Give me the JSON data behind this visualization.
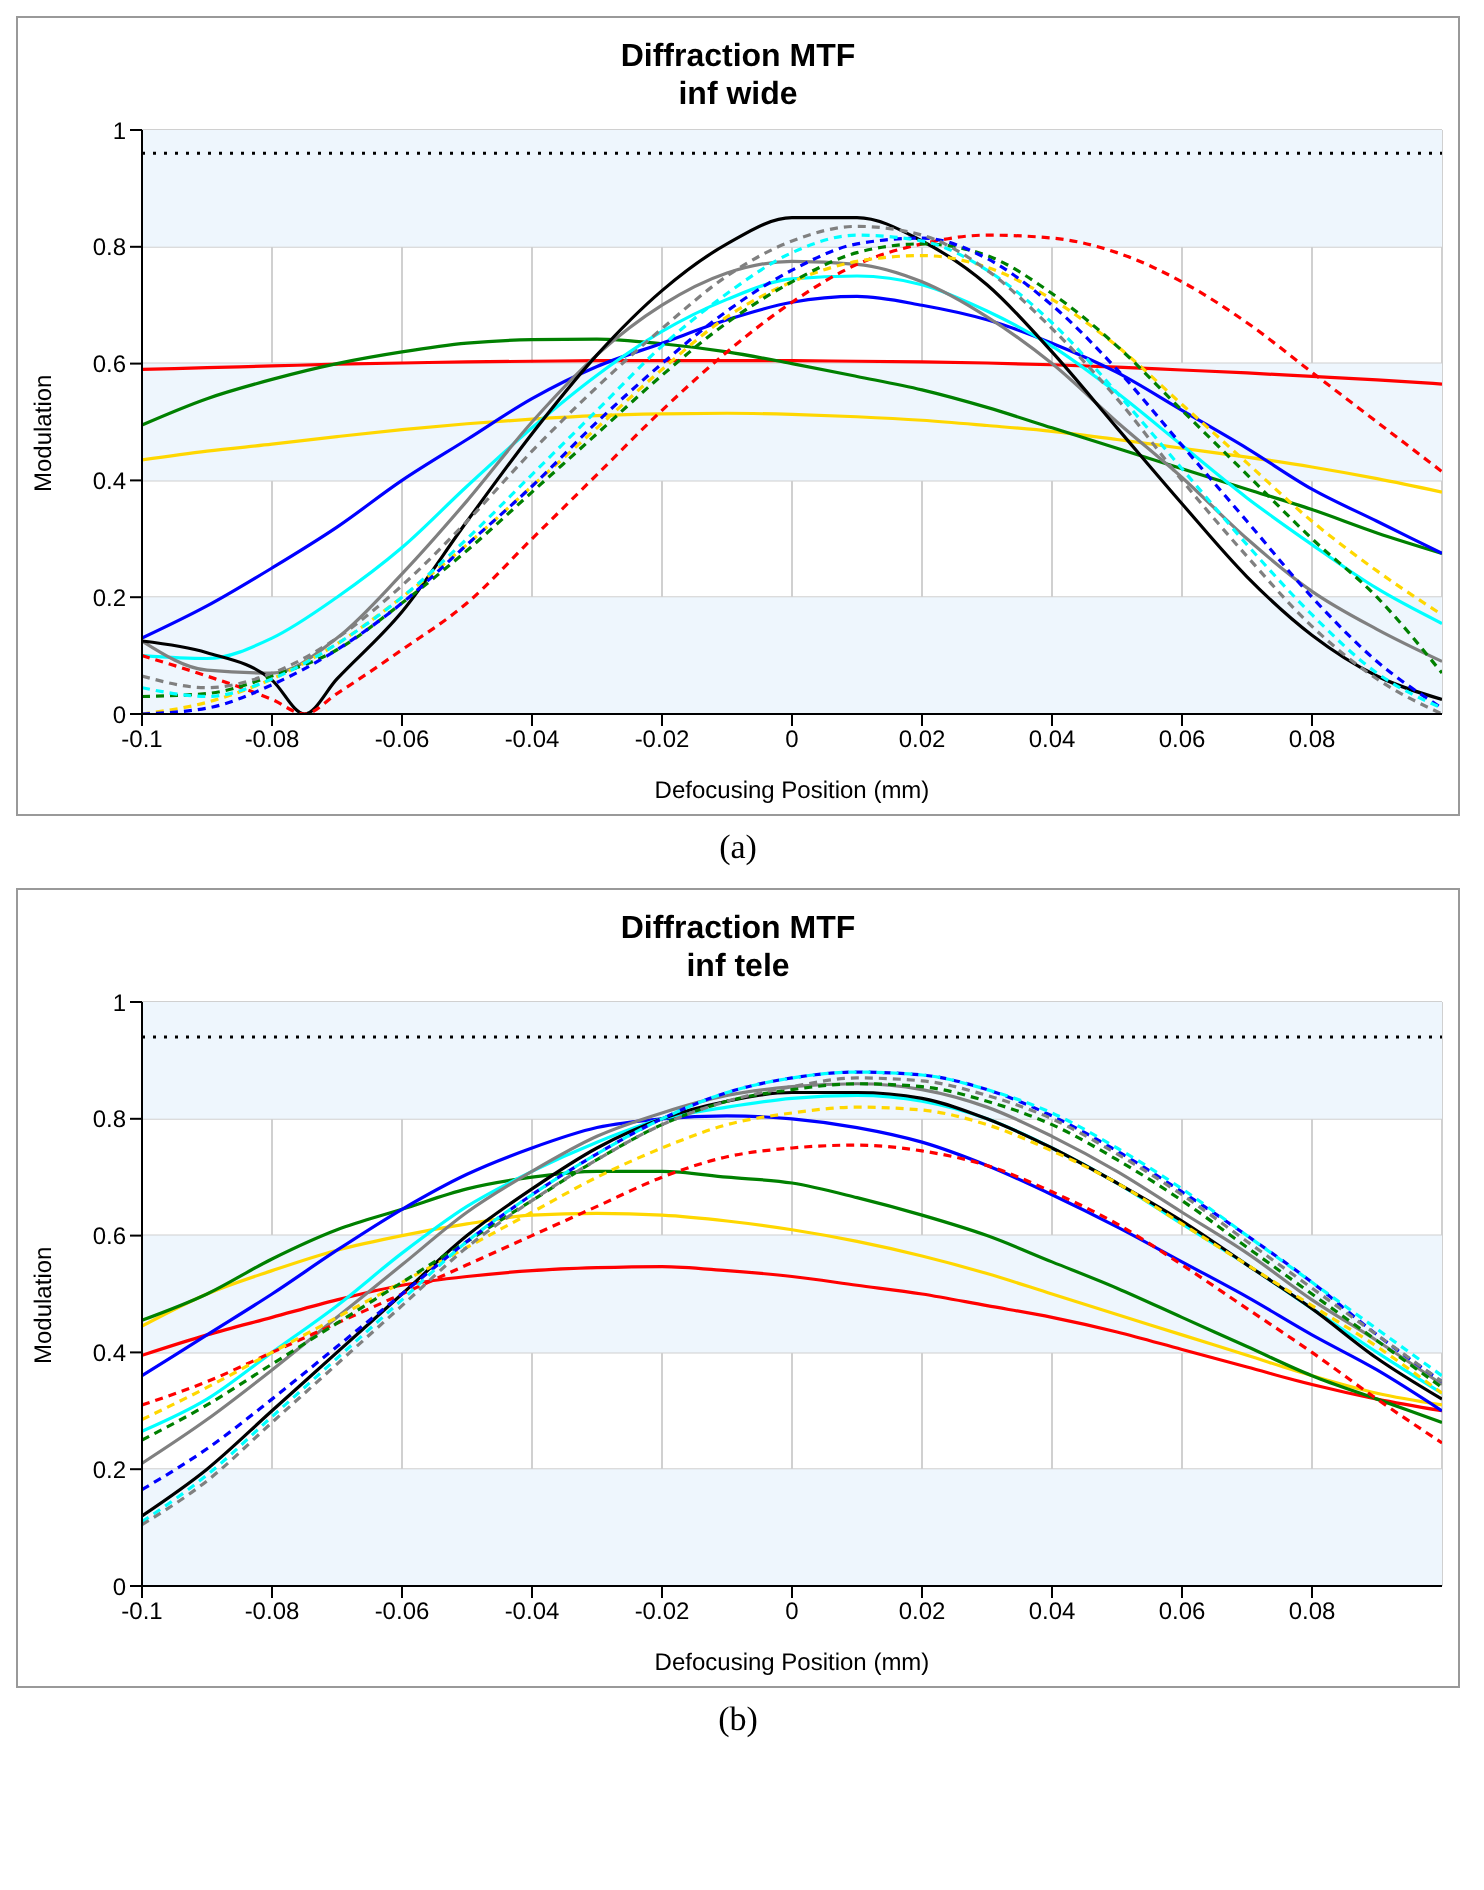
{
  "chart_data": [
    {
      "type": "line",
      "title": "Diffraction MTF",
      "subtitle": "inf wide",
      "xlabel": "Defocusing Position (mm)",
      "ylabel": "Modulation",
      "annotations": [
        "(a)"
      ],
      "x": [
        -0.1,
        -0.09,
        -0.08,
        -0.07,
        -0.06,
        -0.05,
        -0.04,
        -0.03,
        -0.02,
        -0.01,
        0,
        0.01,
        0.02,
        0.03,
        0.04,
        0.05,
        0.06,
        0.07,
        0.08,
        0.09,
        0.1
      ],
      "xlim": [
        -0.1,
        0.1
      ],
      "xticks": [
        -0.1,
        -0.08,
        -0.06,
        -0.04,
        -0.02,
        0,
        0.02,
        0.04,
        0.06,
        0.08
      ],
      "ylim": [
        0,
        1
      ],
      "yticks": [
        0,
        0.2,
        0.4,
        0.6,
        0.8,
        1
      ],
      "grid": true,
      "bands": [
        {
          "axis": "y",
          "from": 0,
          "to": 0.2,
          "color": "#eef6fd"
        },
        {
          "axis": "y",
          "from": 0.4,
          "to": 0.6,
          "color": "#eef6fd"
        },
        {
          "axis": "y",
          "from": 0.8,
          "to": 1,
          "color": "#eef6fd"
        }
      ],
      "ref_lines": [
        {
          "axis": "y",
          "value": 0.96,
          "color": "#000000",
          "line_style": "dotted"
        }
      ],
      "series": [
        {
          "color": "#ff0000",
          "line_style": "solid",
          "values": [
            0.59,
            0.593,
            0.596,
            0.599,
            0.601,
            0.603,
            0.604,
            0.605,
            0.605,
            0.605,
            0.605,
            0.604,
            0.603,
            0.601,
            0.598,
            0.594,
            0.589,
            0.584,
            0.578,
            0.572,
            0.565
          ]
        },
        {
          "color": "#ffd700",
          "line_style": "solid",
          "values": [
            0.435,
            0.45,
            0.462,
            0.475,
            0.487,
            0.497,
            0.505,
            0.511,
            0.514,
            0.515,
            0.513,
            0.509,
            0.503,
            0.494,
            0.484,
            0.47,
            0.455,
            0.44,
            0.423,
            0.403,
            0.38
          ]
        },
        {
          "color": "#008000",
          "line_style": "solid",
          "values": [
            0.495,
            0.54,
            0.573,
            0.6,
            0.62,
            0.635,
            0.641,
            0.642,
            0.634,
            0.62,
            0.6,
            0.578,
            0.555,
            0.525,
            0.49,
            0.455,
            0.42,
            0.385,
            0.35,
            0.31,
            0.275
          ]
        },
        {
          "color": "#0000ff",
          "line_style": "solid",
          "values": [
            0.13,
            0.185,
            0.25,
            0.32,
            0.4,
            0.47,
            0.54,
            0.595,
            0.635,
            0.675,
            0.705,
            0.715,
            0.7,
            0.675,
            0.635,
            0.585,
            0.52,
            0.455,
            0.385,
            0.33,
            0.275
          ]
        },
        {
          "color": "#00ffff",
          "line_style": "solid",
          "values": [
            0.1,
            0.095,
            0.13,
            0.2,
            0.285,
            0.39,
            0.49,
            0.58,
            0.655,
            0.71,
            0.745,
            0.75,
            0.735,
            0.69,
            0.63,
            0.55,
            0.46,
            0.37,
            0.29,
            0.215,
            0.155
          ]
        },
        {
          "color": "#808080",
          "line_style": "solid",
          "values": [
            0.125,
            0.075,
            0.07,
            0.13,
            0.24,
            0.365,
            0.5,
            0.615,
            0.7,
            0.755,
            0.775,
            0.77,
            0.74,
            0.68,
            0.6,
            0.5,
            0.405,
            0.3,
            0.21,
            0.145,
            0.09
          ]
        },
        {
          "color": "#000000",
          "line_style": "solid",
          "x": [
            -0.1,
            -0.09,
            -0.08,
            -0.075,
            -0.07,
            -0.06,
            -0.05,
            -0.04,
            -0.03,
            -0.02,
            -0.01,
            0,
            0.01,
            0.02,
            0.03,
            0.04,
            0.05,
            0.06,
            0.07,
            0.08,
            0.09,
            0.1
          ],
          "values": [
            0.125,
            0.105,
            0.058,
            0,
            0.06,
            0.175,
            0.33,
            0.48,
            0.615,
            0.725,
            0.805,
            0.85,
            0.85,
            0.81,
            0.735,
            0.62,
            0.49,
            0.36,
            0.235,
            0.135,
            0.065,
            0.025
          ]
        },
        {
          "color": "#ff0000",
          "line_style": "dashed",
          "x": [
            -0.1,
            -0.09,
            -0.08,
            -0.075,
            -0.07,
            -0.06,
            -0.05,
            -0.04,
            -0.03,
            -0.02,
            -0.01,
            0,
            0.01,
            0.02,
            0.03,
            0.04,
            0.05,
            0.06,
            0.07,
            0.08,
            0.09,
            0.1
          ],
          "values": [
            0.1,
            0.065,
            0.025,
            0,
            0.035,
            0.11,
            0.19,
            0.3,
            0.41,
            0.52,
            0.62,
            0.705,
            0.77,
            0.805,
            0.82,
            0.815,
            0.79,
            0.74,
            0.67,
            0.585,
            0.5,
            0.415
          ]
        },
        {
          "color": "#ffd700",
          "line_style": "dashed",
          "values": [
            0,
            0.02,
            0.06,
            0.12,
            0.2,
            0.29,
            0.39,
            0.49,
            0.59,
            0.68,
            0.74,
            0.775,
            0.785,
            0.765,
            0.71,
            0.63,
            0.53,
            0.43,
            0.33,
            0.245,
            0.17
          ]
        },
        {
          "color": "#008000",
          "line_style": "dashed",
          "values": [
            0.03,
            0.035,
            0.065,
            0.11,
            0.19,
            0.28,
            0.38,
            0.48,
            0.58,
            0.67,
            0.74,
            0.79,
            0.805,
            0.785,
            0.72,
            0.63,
            0.52,
            0.41,
            0.3,
            0.2,
            0.07
          ]
        },
        {
          "color": "#0000ff",
          "line_style": "dashed",
          "values": [
            0,
            0.01,
            0.05,
            0.11,
            0.19,
            0.29,
            0.39,
            0.5,
            0.6,
            0.69,
            0.76,
            0.805,
            0.815,
            0.78,
            0.7,
            0.59,
            0.46,
            0.33,
            0.2,
            0.09,
            0.01
          ]
        },
        {
          "color": "#00ffff",
          "line_style": "dashed",
          "values": [
            0.045,
            0.03,
            0.06,
            0.12,
            0.2,
            0.3,
            0.41,
            0.52,
            0.63,
            0.72,
            0.79,
            0.82,
            0.81,
            0.76,
            0.67,
            0.55,
            0.42,
            0.29,
            0.17,
            0.07,
            0.01
          ]
        },
        {
          "color": "#808080",
          "line_style": "dashed",
          "values": [
            0.065,
            0.045,
            0.07,
            0.13,
            0.22,
            0.33,
            0.45,
            0.56,
            0.66,
            0.75,
            0.81,
            0.835,
            0.82,
            0.76,
            0.66,
            0.54,
            0.4,
            0.27,
            0.15,
            0.06,
            0
          ]
        }
      ]
    },
    {
      "type": "line",
      "title": "Diffraction MTF",
      "subtitle": "inf tele",
      "xlabel": "Defocusing Position (mm)",
      "ylabel": "Modulation",
      "annotations": [
        "(b)"
      ],
      "x": [
        -0.1,
        -0.09,
        -0.08,
        -0.07,
        -0.06,
        -0.05,
        -0.04,
        -0.03,
        -0.02,
        -0.01,
        0,
        0.01,
        0.02,
        0.03,
        0.04,
        0.05,
        0.06,
        0.07,
        0.08,
        0.09,
        0.1
      ],
      "xlim": [
        -0.1,
        0.1
      ],
      "xticks": [
        -0.1,
        -0.08,
        -0.06,
        -0.04,
        -0.02,
        0,
        0.02,
        0.04,
        0.06,
        0.08
      ],
      "ylim": [
        0,
        1
      ],
      "yticks": [
        0,
        0.2,
        0.4,
        0.6,
        0.8,
        1
      ],
      "grid": true,
      "bands": [
        {
          "axis": "y",
          "from": 0,
          "to": 0.2,
          "color": "#eef6fd"
        },
        {
          "axis": "y",
          "from": 0.4,
          "to": 0.6,
          "color": "#eef6fd"
        },
        {
          "axis": "y",
          "from": 0.8,
          "to": 1,
          "color": "#eef6fd"
        }
      ],
      "ref_lines": [
        {
          "axis": "y",
          "value": 0.94,
          "color": "#000000",
          "line_style": "dotted"
        }
      ],
      "series": [
        {
          "color": "#ff0000",
          "line_style": "solid",
          "values": [
            0.395,
            0.43,
            0.46,
            0.49,
            0.515,
            0.53,
            0.54,
            0.545,
            0.547,
            0.54,
            0.53,
            0.515,
            0.5,
            0.48,
            0.46,
            0.435,
            0.405,
            0.375,
            0.345,
            0.32,
            0.3
          ]
        },
        {
          "color": "#ffd700",
          "line_style": "solid",
          "values": [
            0.445,
            0.5,
            0.54,
            0.575,
            0.6,
            0.62,
            0.635,
            0.638,
            0.635,
            0.625,
            0.61,
            0.59,
            0.565,
            0.535,
            0.5,
            0.465,
            0.43,
            0.395,
            0.36,
            0.33,
            0.31
          ]
        },
        {
          "color": "#008000",
          "line_style": "solid",
          "values": [
            0.455,
            0.5,
            0.56,
            0.61,
            0.645,
            0.68,
            0.7,
            0.71,
            0.71,
            0.7,
            0.69,
            0.665,
            0.635,
            0.6,
            0.555,
            0.51,
            0.46,
            0.41,
            0.36,
            0.32,
            0.28
          ]
        },
        {
          "color": "#0000ff",
          "line_style": "solid",
          "values": [
            0.36,
            0.43,
            0.5,
            0.575,
            0.645,
            0.705,
            0.75,
            0.785,
            0.8,
            0.805,
            0.8,
            0.785,
            0.76,
            0.72,
            0.67,
            0.615,
            0.555,
            0.495,
            0.43,
            0.37,
            0.3
          ]
        },
        {
          "color": "#00ffff",
          "line_style": "solid",
          "values": [
            0.265,
            0.32,
            0.4,
            0.48,
            0.57,
            0.65,
            0.71,
            0.76,
            0.8,
            0.82,
            0.835,
            0.84,
            0.83,
            0.8,
            0.75,
            0.69,
            0.62,
            0.55,
            0.475,
            0.4,
            0.33
          ]
        },
        {
          "color": "#808080",
          "line_style": "solid",
          "values": [
            0.21,
            0.285,
            0.37,
            0.46,
            0.55,
            0.64,
            0.71,
            0.77,
            0.81,
            0.84,
            0.855,
            0.86,
            0.85,
            0.82,
            0.77,
            0.71,
            0.64,
            0.57,
            0.49,
            0.42,
            0.345
          ]
        },
        {
          "color": "#000000",
          "line_style": "solid",
          "values": [
            0.12,
            0.2,
            0.3,
            0.4,
            0.5,
            0.6,
            0.68,
            0.75,
            0.8,
            0.83,
            0.845,
            0.845,
            0.835,
            0.8,
            0.75,
            0.69,
            0.625,
            0.55,
            0.475,
            0.39,
            0.32
          ]
        },
        {
          "color": "#ff0000",
          "line_style": "dashed",
          "values": [
            0.31,
            0.35,
            0.4,
            0.45,
            0.5,
            0.55,
            0.6,
            0.65,
            0.7,
            0.735,
            0.75,
            0.755,
            0.745,
            0.72,
            0.675,
            0.62,
            0.55,
            0.475,
            0.4,
            0.32,
            0.245
          ]
        },
        {
          "color": "#ffd700",
          "line_style": "dashed",
          "values": [
            0.285,
            0.34,
            0.4,
            0.46,
            0.52,
            0.58,
            0.64,
            0.7,
            0.75,
            0.79,
            0.81,
            0.82,
            0.815,
            0.79,
            0.745,
            0.69,
            0.62,
            0.55,
            0.48,
            0.41,
            0.33
          ]
        },
        {
          "color": "#008000",
          "line_style": "dashed",
          "values": [
            0.25,
            0.31,
            0.38,
            0.45,
            0.52,
            0.59,
            0.66,
            0.73,
            0.79,
            0.83,
            0.85,
            0.86,
            0.855,
            0.83,
            0.79,
            0.73,
            0.66,
            0.58,
            0.5,
            0.42,
            0.34
          ]
        },
        {
          "color": "#0000ff",
          "line_style": "dashed",
          "values": [
            0.165,
            0.235,
            0.32,
            0.41,
            0.5,
            0.59,
            0.67,
            0.74,
            0.8,
            0.845,
            0.87,
            0.88,
            0.875,
            0.85,
            0.805,
            0.745,
            0.675,
            0.6,
            0.52,
            0.43,
            0.35
          ]
        },
        {
          "color": "#00ffff",
          "line_style": "dashed",
          "values": [
            0.11,
            0.19,
            0.29,
            0.39,
            0.49,
            0.59,
            0.67,
            0.74,
            0.8,
            0.845,
            0.87,
            0.88,
            0.875,
            0.85,
            0.81,
            0.75,
            0.68,
            0.6,
            0.52,
            0.44,
            0.36
          ]
        },
        {
          "color": "#808080",
          "line_style": "dashed",
          "values": [
            0.105,
            0.18,
            0.28,
            0.38,
            0.48,
            0.58,
            0.66,
            0.73,
            0.79,
            0.83,
            0.855,
            0.87,
            0.865,
            0.84,
            0.8,
            0.74,
            0.67,
            0.59,
            0.51,
            0.43,
            0.35
          ]
        }
      ]
    }
  ]
}
